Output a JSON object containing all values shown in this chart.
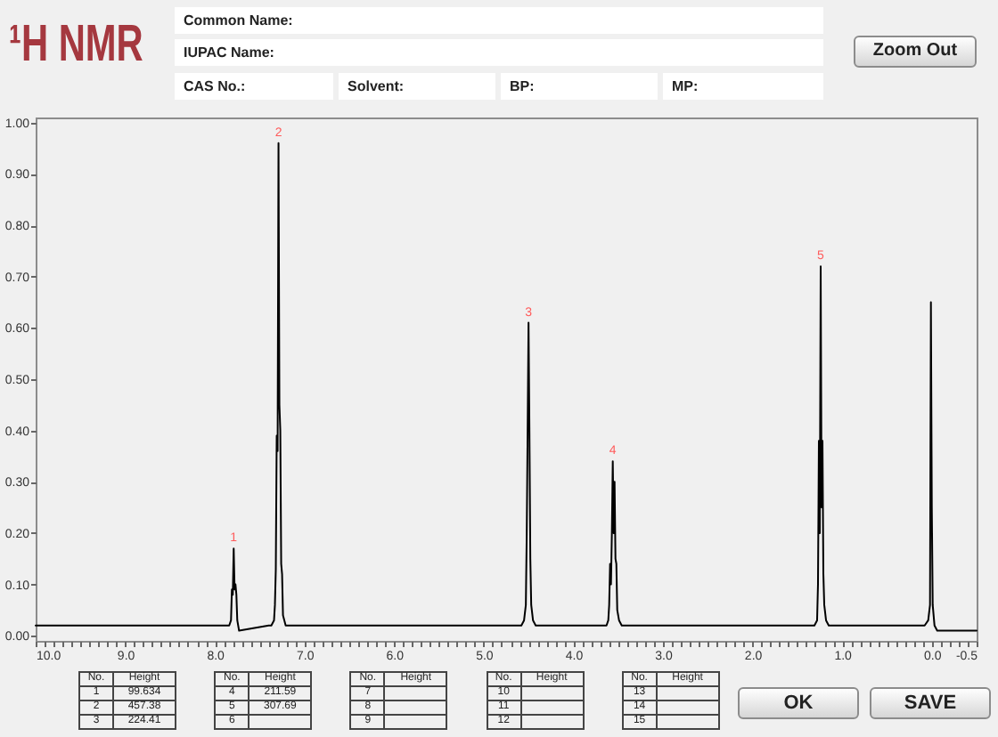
{
  "chart_data": {
    "type": "line",
    "title": "¹H NMR",
    "color": "#000000",
    "x": [
      10,
      7.84,
      7.82,
      7.81,
      7.8,
      7.79,
      7.78,
      7.77,
      7.76,
      7.75,
      7.73,
      7.4,
      7.37,
      7.34,
      7.33,
      7.32,
      7.31,
      7.3,
      7.29,
      7.28,
      7.27,
      7.26,
      7.25,
      7.24,
      7.21,
      4.58,
      4.55,
      4.53,
      4.52,
      4.51,
      4.5,
      4.49,
      4.48,
      4.47,
      4.45,
      4.42,
      3.63,
      3.61,
      3.6,
      3.59,
      3.58,
      3.57,
      3.56,
      3.55,
      3.54,
      3.53,
      3.52,
      3.51,
      3.49,
      3.46,
      1.31,
      1.28,
      1.27,
      1.26,
      1.25,
      1.24,
      1.23,
      1.22,
      1.21,
      1.2,
      1.18,
      1.15,
      0.08,
      0.04,
      0.02,
      0.01,
      0,
      -0.01,
      -0.03,
      -0.06,
      -0.5
    ],
    "values": [
      0.02,
      0.02,
      0.03,
      0.09,
      0.08,
      0.17,
      0.09,
      0.1,
      0.08,
      0.03,
      0.01,
      0.02,
      0.02,
      0.03,
      0.06,
      0.13,
      0.39,
      0.36,
      0.96,
      0.45,
      0.4,
      0.14,
      0.12,
      0.04,
      0.02,
      0.02,
      0.03,
      0.06,
      0.2,
      0.4,
      0.61,
      0.4,
      0.15,
      0.06,
      0.03,
      0.02,
      0.02,
      0.03,
      0.06,
      0.14,
      0.1,
      0.2,
      0.34,
      0.2,
      0.3,
      0.15,
      0.14,
      0.05,
      0.03,
      0.02,
      0.02,
      0.03,
      0.1,
      0.38,
      0.2,
      0.72,
      0.25,
      0.38,
      0.12,
      0.06,
      0.03,
      0.02,
      0.02,
      0.03,
      0.06,
      0.65,
      0.25,
      0.06,
      0.02,
      0.01,
      0.01
    ],
    "xlim": [
      10,
      -0.5
    ],
    "xticks": [
      {
        "value": 10,
        "label": "10.0"
      },
      {
        "value": 9.9,
        "label": null
      },
      {
        "value": 9.8,
        "label": null
      },
      {
        "value": 9.7,
        "label": null
      },
      {
        "value": 9.6,
        "label": null
      },
      {
        "value": 9.5,
        "label": null
      },
      {
        "value": 9.4,
        "label": null
      },
      {
        "value": 9.3,
        "label": null
      },
      {
        "value": 9.2,
        "label": null
      },
      {
        "value": 9.1,
        "label": null
      },
      {
        "value": 9,
        "label": "9.0"
      },
      {
        "value": 8.9,
        "label": null
      },
      {
        "value": 8.8,
        "label": null
      },
      {
        "value": 8.7,
        "label": null
      },
      {
        "value": 8.6,
        "label": null
      },
      {
        "value": 8.5,
        "label": null
      },
      {
        "value": 8.4,
        "label": null
      },
      {
        "value": 8.3,
        "label": null
      },
      {
        "value": 8.2,
        "label": null
      },
      {
        "value": 8.1,
        "label": null
      },
      {
        "value": 8,
        "label": "8.0"
      },
      {
        "value": 7.9,
        "label": null
      },
      {
        "value": 7.8,
        "label": null
      },
      {
        "value": 7.7,
        "label": null
      },
      {
        "value": 7.6,
        "label": null
      },
      {
        "value": 7.5,
        "label": null
      },
      {
        "value": 7.4,
        "label": null
      },
      {
        "value": 7.3,
        "label": null
      },
      {
        "value": 7.2,
        "label": null
      },
      {
        "value": 7.1,
        "label": null
      },
      {
        "value": 7,
        "label": "7.0"
      },
      {
        "value": 6.9,
        "label": null
      },
      {
        "value": 6.8,
        "label": null
      },
      {
        "value": 6.7,
        "label": null
      },
      {
        "value": 6.6,
        "label": null
      },
      {
        "value": 6.5,
        "label": null
      },
      {
        "value": 6.4,
        "label": null
      },
      {
        "value": 6.3,
        "label": null
      },
      {
        "value": 6.2,
        "label": null
      },
      {
        "value": 6.1,
        "label": null
      },
      {
        "value": 6,
        "label": "6.0"
      },
      {
        "value": 5.9,
        "label": null
      },
      {
        "value": 5.8,
        "label": null
      },
      {
        "value": 5.7,
        "label": null
      },
      {
        "value": 5.6,
        "label": null
      },
      {
        "value": 5.5,
        "label": null
      },
      {
        "value": 5.4,
        "label": null
      },
      {
        "value": 5.3,
        "label": null
      },
      {
        "value": 5.2,
        "label": null
      },
      {
        "value": 5.1,
        "label": null
      },
      {
        "value": 5,
        "label": "5.0"
      },
      {
        "value": 4.9,
        "label": null
      },
      {
        "value": 4.8,
        "label": null
      },
      {
        "value": 4.7,
        "label": null
      },
      {
        "value": 4.6,
        "label": null
      },
      {
        "value": 4.5,
        "label": null
      },
      {
        "value": 4.4,
        "label": null
      },
      {
        "value": 4.3,
        "label": null
      },
      {
        "value": 4.2,
        "label": null
      },
      {
        "value": 4.1,
        "label": null
      },
      {
        "value": 4,
        "label": "4.0"
      },
      {
        "value": 3.9,
        "label": null
      },
      {
        "value": 3.8,
        "label": null
      },
      {
        "value": 3.7,
        "label": null
      },
      {
        "value": 3.6,
        "label": null
      },
      {
        "value": 3.5,
        "label": null
      },
      {
        "value": 3.4,
        "label": null
      },
      {
        "value": 3.3,
        "label": null
      },
      {
        "value": 3.2,
        "label": null
      },
      {
        "value": 3.1,
        "label": null
      },
      {
        "value": 3,
        "label": "3.0"
      },
      {
        "value": 2.9,
        "label": null
      },
      {
        "value": 2.8,
        "label": null
      },
      {
        "value": 2.7,
        "label": null
      },
      {
        "value": 2.6,
        "label": null
      },
      {
        "value": 2.5,
        "label": null
      },
      {
        "value": 2.4,
        "label": null
      },
      {
        "value": 2.3,
        "label": null
      },
      {
        "value": 2.2,
        "label": null
      },
      {
        "value": 2.1,
        "label": null
      },
      {
        "value": 2,
        "label": "2.0"
      },
      {
        "value": 1.9,
        "label": null
      },
      {
        "value": 1.8,
        "label": null
      },
      {
        "value": 1.7,
        "label": null
      },
      {
        "value": 1.6,
        "label": null
      },
      {
        "value": 1.5,
        "label": null
      },
      {
        "value": 1.4,
        "label": null
      },
      {
        "value": 1.3,
        "label": null
      },
      {
        "value": 1.2,
        "label": null
      },
      {
        "value": 1.1,
        "label": null
      },
      {
        "value": 1,
        "label": "1.0"
      },
      {
        "value": 0.9,
        "label": null
      },
      {
        "value": 0.8,
        "label": null
      },
      {
        "value": 0.7,
        "label": null
      },
      {
        "value": 0.6,
        "label": null
      },
      {
        "value": 0.5,
        "label": null
      },
      {
        "value": 0.4,
        "label": null
      },
      {
        "value": 0.3,
        "label": null
      },
      {
        "value": 0.2,
        "label": null
      },
      {
        "value": 0.1,
        "label": null
      },
      {
        "value": 0,
        "label": "0.0"
      },
      {
        "value": -0.1,
        "label": null
      },
      {
        "value": -0.2,
        "label": null
      },
      {
        "value": -0.3,
        "label": null
      },
      {
        "value": -0.4,
        "label": null
      },
      {
        "value": -0.5,
        "label": "-0.5"
      }
    ],
    "ylim": [
      -0.01,
      1.01
    ],
    "yticks": [
      {
        "value": 0,
        "label": "0.00"
      },
      {
        "value": 0.1,
        "label": "0.10"
      },
      {
        "value": 0.2,
        "label": "0.20"
      },
      {
        "value": 0.3,
        "label": "0.30"
      },
      {
        "value": 0.4,
        "label": "0.40"
      },
      {
        "value": 0.5,
        "label": "0.50"
      },
      {
        "value": 0.6,
        "label": "0.60"
      },
      {
        "value": 0.7,
        "label": "0.70"
      },
      {
        "value": 0.8,
        "label": "0.80"
      },
      {
        "value": 0.9,
        "label": "0.90"
      },
      {
        "value": 1,
        "label": "1.00"
      }
    ],
    "annotations": [
      "Common Name:",
      "IUPAC Name:",
      "CAS No.:",
      "Solvent:",
      "BP:",
      "MP:",
      "Zoom Out",
      {
        "text": "1",
        "x": 7.79,
        "y": 0.17
      },
      {
        "text": "2",
        "x": 7.29,
        "y": 0.96
      },
      {
        "text": "3",
        "x": 4.5,
        "y": 0.61
      },
      {
        "text": "4",
        "x": 3.56,
        "y": 0.34
      },
      {
        "text": "5",
        "x": 1.24,
        "y": 0.72
      },
      "No.",
      "Height",
      "1",
      "99.634",
      "2",
      "457.38",
      "3",
      "224.41",
      "No.",
      "Height",
      "4",
      "211.59",
      "5",
      "307.69",
      "6",
      "No.",
      "Height",
      "7",
      "8",
      "9",
      "No.",
      "Height",
      "10",
      "11",
      "12",
      "No.",
      "Height",
      "13",
      "14",
      "15",
      "OK",
      "SAVE"
    ]
  }
}
